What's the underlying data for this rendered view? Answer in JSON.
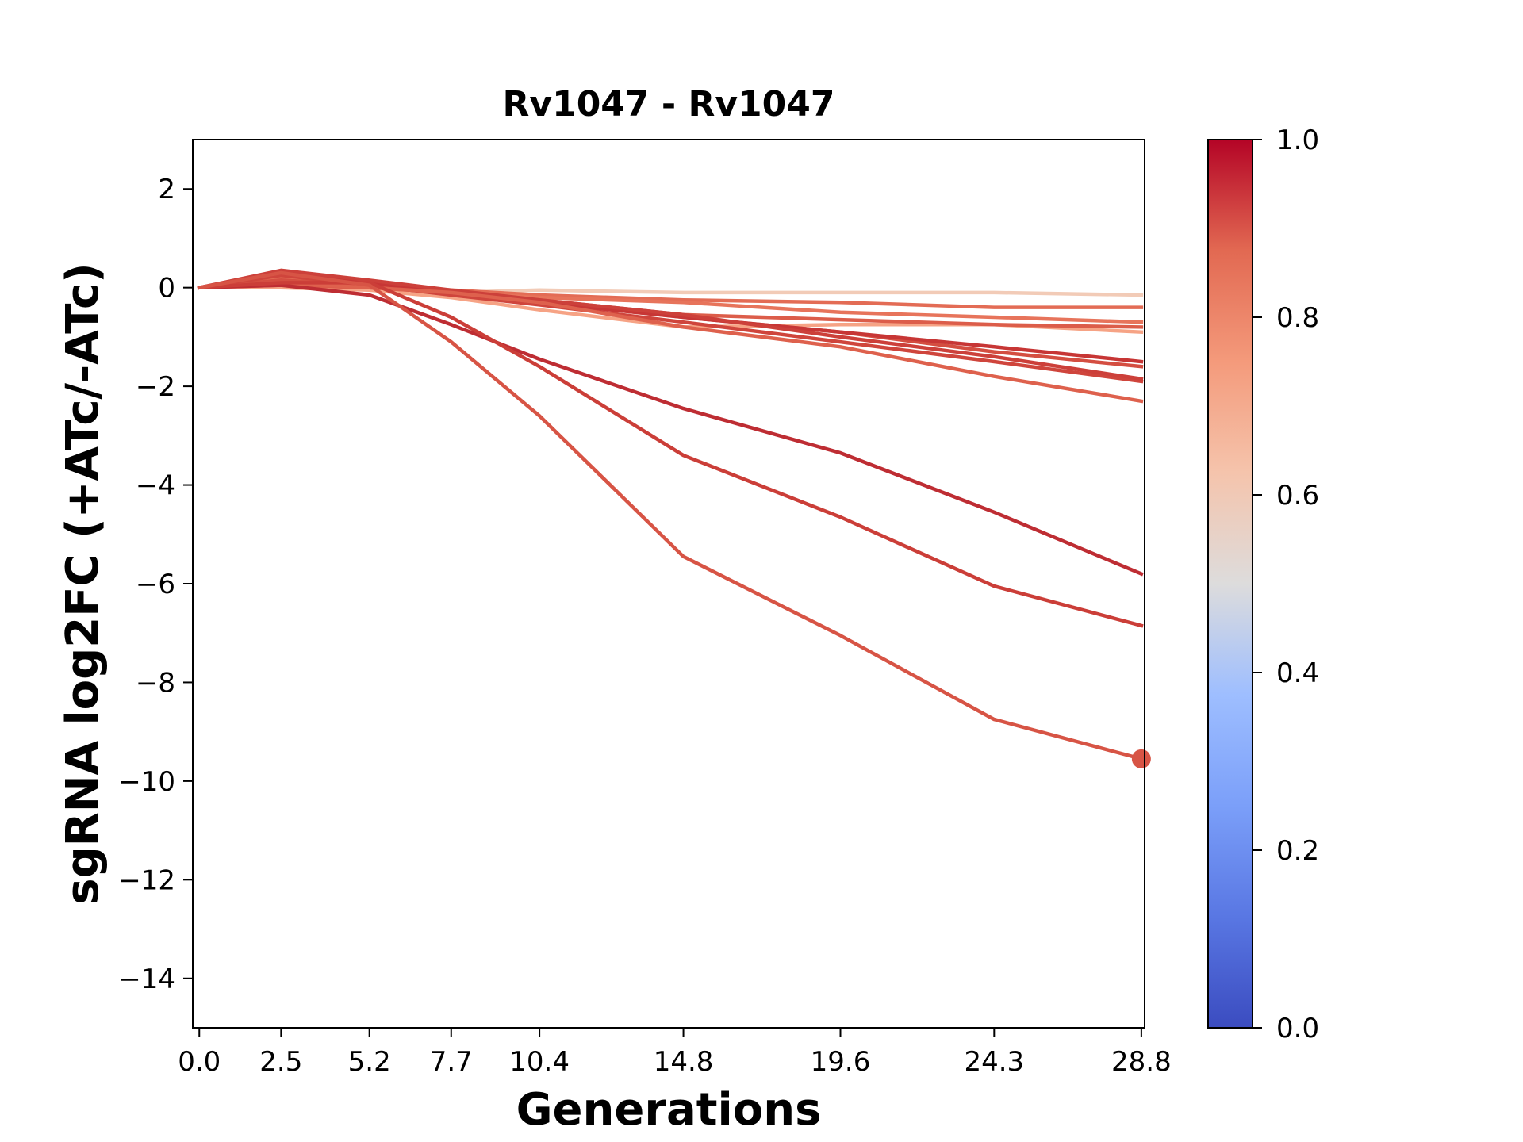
{
  "chart_data": {
    "type": "line",
    "title": "Rv1047 - Rv1047",
    "xlabel": "Generations",
    "ylabel": "sgRNA log2FC (+ATc/-ATc)",
    "x": [
      0.0,
      2.5,
      5.2,
      7.7,
      10.4,
      14.8,
      19.6,
      24.3,
      28.8
    ],
    "x_tick_labels": [
      "0.0",
      "2.5",
      "5.2",
      "7.7",
      "10.4",
      "14.8",
      "19.6",
      "24.3",
      "28.8"
    ],
    "xlim": [
      -0.2,
      28.9
    ],
    "ylim": [
      -15,
      3
    ],
    "y_ticks": [
      2,
      0,
      -2,
      -4,
      -6,
      -8,
      -10,
      -12,
      -14
    ],
    "y_tick_labels": [
      "2",
      "0",
      "−2",
      "−4",
      "−6",
      "−8",
      "−10",
      "−12",
      "−14"
    ],
    "grid": false,
    "legend": "none",
    "colorbar": {
      "min": 0.0,
      "max": 1.0,
      "ticks": [
        0.0,
        0.2,
        0.4,
        0.6,
        0.8,
        1.0
      ],
      "tick_labels": [
        "0.0",
        "0.2",
        "0.4",
        "0.6",
        "0.8",
        "1.0"
      ],
      "colormap": "coolwarm",
      "stops": [
        {
          "v": 0.0,
          "color": "#3b4cc0"
        },
        {
          "v": 0.125,
          "color": "#5977e3"
        },
        {
          "v": 0.25,
          "color": "#7b9ff9"
        },
        {
          "v": 0.375,
          "color": "#9ebeff"
        },
        {
          "v": 0.5,
          "color": "#dddcdc"
        },
        {
          "v": 0.625,
          "color": "#f5c4ac"
        },
        {
          "v": 0.75,
          "color": "#f49a7b"
        },
        {
          "v": 0.875,
          "color": "#e26952"
        },
        {
          "v": 1.0,
          "color": "#b40426"
        }
      ]
    },
    "series": [
      {
        "values": [
          0.0,
          0.05,
          0.02,
          -0.1,
          -0.05,
          -0.1,
          -0.1,
          -0.1,
          -0.15
        ],
        "color": "#f2cbb7"
      },
      {
        "values": [
          0.0,
          0.0,
          -0.05,
          -0.2,
          -0.45,
          -0.8,
          -0.75,
          -0.75,
          -0.9
        ],
        "color": "#f6a385"
      },
      {
        "values": [
          0.0,
          0.2,
          0.05,
          -0.05,
          -0.15,
          -0.25,
          -0.3,
          -0.4,
          -0.4
        ],
        "color": "#e36c55"
      },
      {
        "values": [
          0.0,
          0.1,
          0.0,
          -0.1,
          -0.2,
          -0.3,
          -0.5,
          -0.6,
          -0.7
        ],
        "color": "#e7745b"
      },
      {
        "values": [
          0.0,
          0.05,
          0.0,
          -0.1,
          -0.25,
          -0.55,
          -0.65,
          -0.75,
          -0.8
        ],
        "color": "#dc5d4a"
      },
      {
        "values": [
          0.0,
          0.15,
          0.05,
          -0.1,
          -0.3,
          -0.6,
          -0.9,
          -1.3,
          -1.6
        ],
        "color": "#d44e41"
      },
      {
        "values": [
          0.0,
          0.25,
          0.05,
          -0.15,
          -0.35,
          -0.7,
          -1.1,
          -1.5,
          -1.9
        ],
        "color": "#cf453c"
      },
      {
        "values": [
          0.0,
          0.3,
          0.1,
          -0.1,
          -0.3,
          -0.6,
          -0.9,
          -1.2,
          -1.5
        ],
        "color": "#c73635"
      },
      {
        "values": [
          0.0,
          0.35,
          0.15,
          -0.05,
          -0.25,
          -0.55,
          -1.0,
          -1.4,
          -1.85
        ],
        "color": "#cc403a"
      },
      {
        "values": [
          0.0,
          0.1,
          0.0,
          -0.1,
          -0.3,
          -0.8,
          -1.2,
          -1.8,
          -2.3
        ],
        "color": "#de614d"
      },
      {
        "values": [
          0.0,
          0.05,
          -0.15,
          -0.75,
          -1.45,
          -2.45,
          -3.35,
          -4.55,
          -5.8
        ],
        "color": "#be2d33"
      },
      {
        "values": [
          0.0,
          0.1,
          0.1,
          -0.6,
          -1.6,
          -3.4,
          -4.65,
          -6.05,
          -6.85
        ],
        "color": "#cb3e38"
      },
      {
        "values": [
          0.0,
          0.3,
          0.05,
          -1.1,
          -2.6,
          -5.45,
          -7.05,
          -8.75,
          -9.55
        ],
        "color": "#d75445",
        "end_marker": true
      }
    ]
  }
}
